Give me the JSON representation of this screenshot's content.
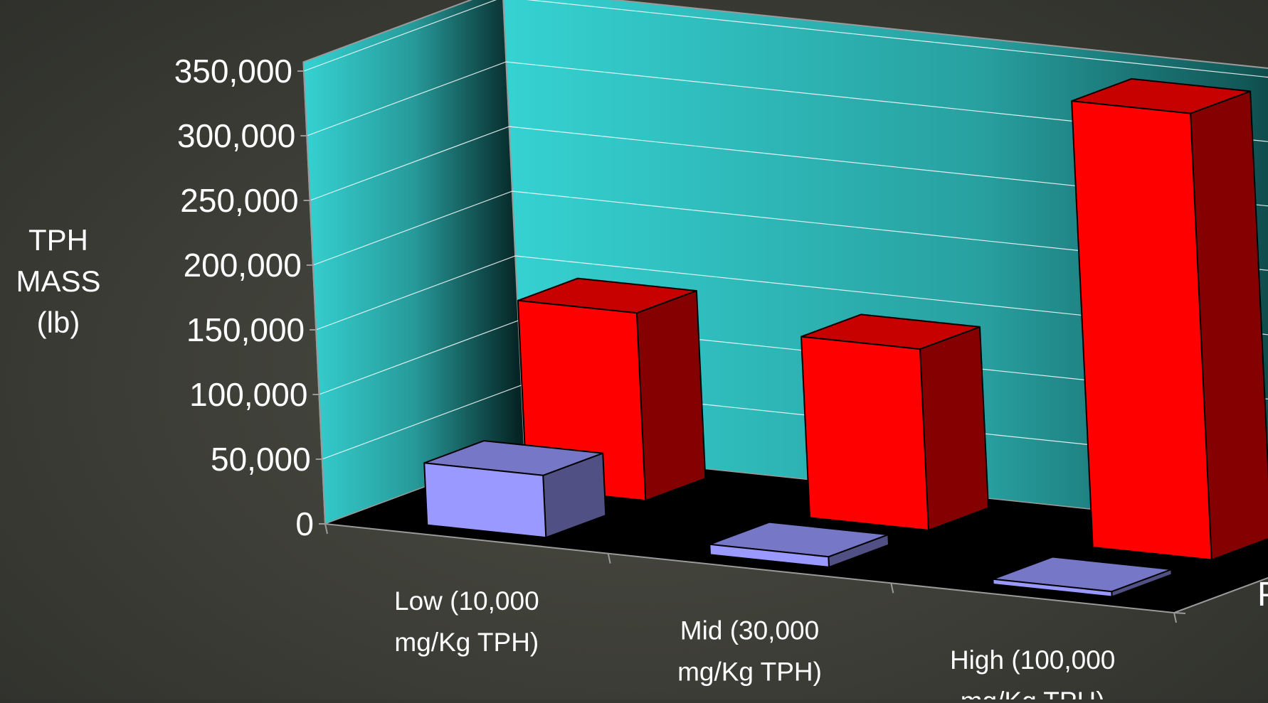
{
  "chart_data": {
    "type": "bar",
    "title": "",
    "ylabel": [
      "TPH",
      "MASS",
      "(lb)"
    ],
    "ylim": [
      0,
      350000
    ],
    "y_ticks": [
      "0",
      "50,000",
      "100,000",
      "150,000",
      "200,000",
      "250,000",
      "300,000",
      "350,000"
    ],
    "y_tick_values": [
      0,
      50000,
      100000,
      150000,
      200000,
      250000,
      300000,
      350000
    ],
    "categories": [
      [
        "Low  (10,000",
        "mg/Kg TPH)"
      ],
      [
        "Mid (30,000",
        "mg/Kg TPH)"
      ],
      [
        "High (100,000",
        "mg/Kg TPH)"
      ]
    ],
    "series": [
      {
        "name": "Pre",
        "values": [
          145000,
          140000,
          345000
        ],
        "color": "#ff0000"
      },
      {
        "name": "Post",
        "values": [
          48000,
          8000,
          4000
        ],
        "color": "#9999ff"
      }
    ],
    "grid": true,
    "legend": "depth-axis-right",
    "colors": {
      "wall": "#33cccc",
      "floor": "#000000",
      "text": "#ffffff"
    }
  }
}
